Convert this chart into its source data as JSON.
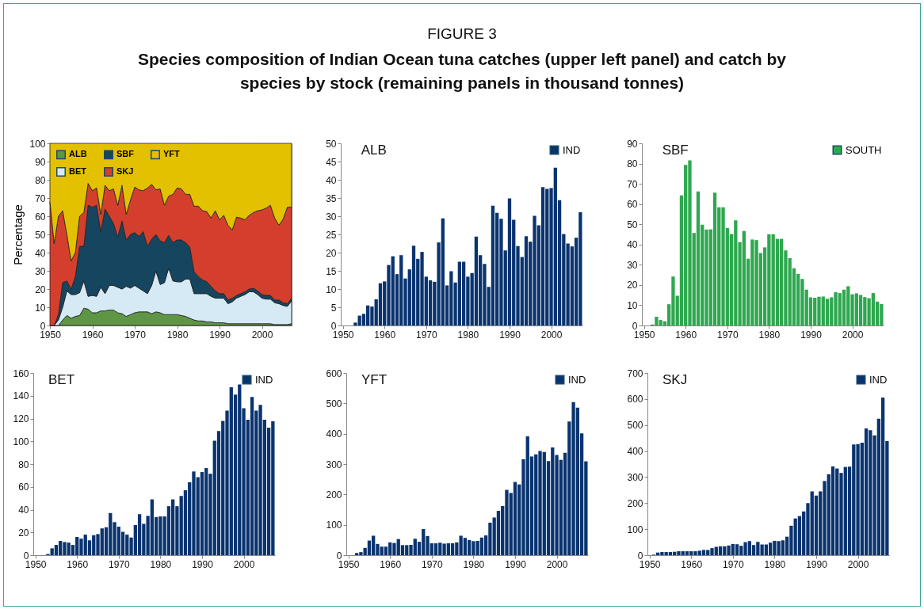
{
  "chart_data": [
    {
      "type": "area",
      "ylabel": "Percentage",
      "stacked": true,
      "legend": "top left",
      "x": [
        1950,
        1951,
        1952,
        1953,
        1954,
        1955,
        1956,
        1957,
        1958,
        1959,
        1960,
        1961,
        1962,
        1963,
        1964,
        1965,
        1966,
        1967,
        1968,
        1969,
        1970,
        1971,
        1972,
        1973,
        1974,
        1975,
        1976,
        1977,
        1978,
        1979,
        1980,
        1981,
        1982,
        1983,
        1984,
        1985,
        1986,
        1987,
        1988,
        1989,
        1990,
        1991,
        1992,
        1993,
        1994,
        1995,
        1996,
        1997,
        1998,
        1999,
        2000,
        2001,
        2002,
        2003,
        2004,
        2005,
        2006,
        2007
      ],
      "xlim": [
        1950,
        2007
      ],
      "xticks": [
        1950,
        1960,
        1970,
        1980,
        1990,
        2000
      ],
      "ylim": [
        0,
        100
      ],
      "yticks": [
        0,
        10,
        20,
        30,
        40,
        50,
        60,
        70,
        80,
        90,
        100
      ],
      "series": [
        {
          "name": "ALB",
          "color": "#5e9645",
          "values": [
            0,
            0,
            0,
            3,
            5.5,
            4,
            5,
            5.5,
            9.5,
            9,
            7,
            7,
            8,
            8,
            8.5,
            8.5,
            7,
            6.5,
            5,
            6,
            7,
            7.5,
            7.5,
            7.5,
            6.5,
            7.5,
            7,
            6,
            6,
            6,
            6,
            5.5,
            5,
            4,
            3,
            2.5,
            2.5,
            2,
            2,
            1.5,
            1.5,
            1.5,
            1,
            1,
            1,
            1,
            1,
            1,
            1,
            1,
            1,
            1,
            1,
            0.5,
            0.5,
            0.5,
            0.5,
            1
          ]
        },
        {
          "name": "BET",
          "color": "#d6eaf6",
          "values": [
            0,
            0,
            3,
            7,
            13.5,
            13,
            12,
            12.5,
            15,
            7,
            9.5,
            9,
            13,
            9.5,
            13.5,
            13.5,
            14,
            13.5,
            16.5,
            14.5,
            15,
            13,
            11.5,
            10,
            15.5,
            22.5,
            15.5,
            17.5,
            25.5,
            18.5,
            18,
            18.5,
            20.5,
            21.5,
            14.5,
            15,
            15,
            15.5,
            14,
            13.5,
            13.5,
            13.5,
            11,
            12,
            14,
            15,
            16,
            17.5,
            17.5,
            16,
            14,
            13.5,
            13.5,
            12,
            11.5,
            10.5,
            10,
            12.5
          ]
        },
        {
          "name": "SBF",
          "color": "#16455f",
          "values": [
            0,
            0,
            3,
            13.5,
            5.5,
            3,
            10,
            25.5,
            19,
            50,
            48.5,
            50,
            30.5,
            46.5,
            38,
            34,
            27.5,
            37.5,
            25.5,
            29.5,
            29,
            28.5,
            32.5,
            26,
            25.5,
            20,
            24,
            22,
            18,
            21,
            23,
            23,
            20,
            17.5,
            12,
            9.5,
            7.5,
            6.5,
            5.5,
            4,
            2.5,
            2.5,
            2,
            2,
            1.5,
            1.5,
            1.5,
            1.5,
            2,
            2,
            2,
            2,
            2,
            1.5,
            2,
            1.5,
            1.5,
            1.5
          ]
        },
        {
          "name": "SKJ",
          "color": "#d43f2d",
          "values": [
            68,
            45,
            54,
            39.5,
            25.5,
            15.5,
            13,
            16.5,
            18.5,
            12,
            9,
            9.5,
            9.5,
            13,
            14,
            19,
            17.5,
            19.5,
            14,
            19,
            25,
            25.5,
            22.5,
            32,
            30,
            24.5,
            28.5,
            20.5,
            21.5,
            26.5,
            28.5,
            28,
            26.5,
            29,
            36,
            38.5,
            38,
            38.5,
            37.5,
            44,
            40.5,
            43,
            41,
            37.5,
            43,
            41.5,
            39.5,
            40.5,
            41.5,
            44,
            46.5,
            48,
            49.5,
            45,
            41,
            46,
            53,
            50
          ]
        },
        {
          "name": "YFT",
          "color": "#e3c100",
          "values": [
            32,
            55,
            40,
            37,
            50,
            64.5,
            60,
            40,
            38,
            22,
            26,
            24.5,
            39,
            23,
            26,
            25,
            34,
            23,
            39,
            31,
            24,
            25.5,
            26,
            24.5,
            22.5,
            25.5,
            25,
            34,
            29,
            28,
            24.5,
            25,
            28,
            28,
            34.5,
            34.5,
            37,
            37.5,
            41,
            37,
            42,
            39.5,
            45,
            47.5,
            40.5,
            41,
            42,
            39.5,
            38,
            37,
            36.5,
            35.5,
            34,
            41,
            45,
            41.5,
            35,
            35
          ]
        }
      ]
    },
    {
      "type": "bar",
      "title": "ALB",
      "legend": "top right",
      "annotations": [
        "FIGURE 3",
        "Species composition of Indian Ocean tuna catches (upper left panel) and catch by species by stock (remaining panels in thousand tonnes)"
      ],
      "x": [
        1950,
        1951,
        1952,
        1953,
        1954,
        1955,
        1956,
        1957,
        1958,
        1959,
        1960,
        1961,
        1962,
        1963,
        1964,
        1965,
        1966,
        1967,
        1968,
        1969,
        1970,
        1971,
        1972,
        1973,
        1974,
        1975,
        1976,
        1977,
        1978,
        1979,
        1980,
        1981,
        1982,
        1983,
        1984,
        1985,
        1986,
        1987,
        1988,
        1989,
        1990,
        1991,
        1992,
        1993,
        1994,
        1995,
        1996,
        1997,
        1998,
        1999,
        2000,
        2001,
        2002,
        2003,
        2004,
        2005,
        2006,
        2007
      ],
      "xlim": [
        1949.5,
        2007.5
      ],
      "xticks": [
        1950,
        1960,
        1970,
        1980,
        1990,
        2000
      ],
      "ylim": [
        0,
        50
      ],
      "yticks": [
        0,
        5,
        10,
        15,
        20,
        25,
        30,
        35,
        40,
        45,
        50
      ],
      "series": [
        {
          "name": "IND",
          "color": "#0a3470",
          "values": [
            0,
            0,
            0,
            0.8,
            2.7,
            3.2,
            5.5,
            5.2,
            7.2,
            11.6,
            12.1,
            16.6,
            19,
            14.1,
            19.3,
            12.9,
            15.4,
            21.9,
            18.3,
            20.2,
            13.4,
            12.4,
            12,
            22.8,
            29.4,
            11,
            14.9,
            11.8,
            17.5,
            17.5,
            13.4,
            14.4,
            24.4,
            19.3,
            16.9,
            10.6,
            32.9,
            30.9,
            29.3,
            20.6,
            34.9,
            29,
            21.8,
            18.8,
            24.5,
            23,
            30.1,
            27.5,
            38,
            37.5,
            37.7,
            43.3,
            34.4,
            25.1,
            22.5,
            21.7,
            24.1,
            31.1
          ]
        }
      ]
    },
    {
      "type": "bar",
      "title": "SBF",
      "legend": "top right",
      "x": [
        1950,
        1951,
        1952,
        1953,
        1954,
        1955,
        1956,
        1957,
        1958,
        1959,
        1960,
        1961,
        1962,
        1963,
        1964,
        1965,
        1966,
        1967,
        1968,
        1969,
        1970,
        1971,
        1972,
        1973,
        1974,
        1975,
        1976,
        1977,
        1978,
        1979,
        1980,
        1981,
        1982,
        1983,
        1984,
        1985,
        1986,
        1987,
        1988,
        1989,
        1990,
        1991,
        1992,
        1993,
        1994,
        1995,
        1996,
        1997,
        1998,
        1999,
        2000,
        2001,
        2002,
        2003,
        2004,
        2005,
        2006,
        2007
      ],
      "xlim": [
        1949.5,
        2007.5
      ],
      "xticks": [
        1950,
        1960,
        1970,
        1980,
        1990,
        2000
      ],
      "ylim": [
        0,
        90
      ],
      "yticks": [
        0,
        10,
        20,
        30,
        40,
        50,
        60,
        70,
        80,
        90
      ],
      "series": [
        {
          "name": "SOUTH",
          "color": "#2ea84f",
          "values": [
            0,
            0,
            0.5,
            4.3,
            2.7,
            2.1,
            10.5,
            24.2,
            14.7,
            64.3,
            79.3,
            81.6,
            45.7,
            66.2,
            49.8,
            47.4,
            47.5,
            65.6,
            58.4,
            58.4,
            48.2,
            45.2,
            51.9,
            41.2,
            46.7,
            33,
            42.5,
            42.2,
            35.8,
            38.6,
            45.1,
            45.1,
            42.8,
            42.8,
            37.1,
            33.3,
            28.3,
            25.5,
            23,
            17.7,
            13.9,
            13.7,
            14.2,
            14.3,
            13.2,
            13.9,
            16.5,
            16,
            17.7,
            19.4,
            15.4,
            15.9,
            15.1,
            14,
            13.5,
            16,
            11.8,
            10.6
          ]
        }
      ]
    },
    {
      "type": "bar",
      "title": "BET",
      "legend": "top right",
      "x": [
        1950,
        1951,
        1952,
        1953,
        1954,
        1955,
        1956,
        1957,
        1958,
        1959,
        1960,
        1961,
        1962,
        1963,
        1964,
        1965,
        1966,
        1967,
        1968,
        1969,
        1970,
        1971,
        1972,
        1973,
        1974,
        1975,
        1976,
        1977,
        1978,
        1979,
        1980,
        1981,
        1982,
        1983,
        1984,
        1985,
        1986,
        1987,
        1988,
        1989,
        1990,
        1991,
        1992,
        1993,
        1994,
        1995,
        1996,
        1997,
        1998,
        1999,
        2000,
        2001,
        2002,
        2003,
        2004,
        2005,
        2006,
        2007
      ],
      "xlim": [
        1949.5,
        2007.5
      ],
      "xticks": [
        1950,
        1960,
        1970,
        1980,
        1990,
        2000
      ],
      "ylim": [
        0,
        160
      ],
      "yticks": [
        0,
        20,
        40,
        60,
        80,
        100,
        120,
        140,
        160
      ],
      "series": [
        {
          "name": "IND",
          "color": "#0a3470",
          "values": [
            0,
            0,
            0,
            1,
            6,
            9,
            12.5,
            11.5,
            11,
            9,
            16,
            14.5,
            18,
            13,
            17.5,
            18.5,
            23.5,
            24.5,
            37,
            29,
            25,
            20.5,
            18,
            15.5,
            26.5,
            36,
            27.5,
            34.5,
            49,
            33.5,
            34,
            34,
            43,
            49,
            43,
            52,
            57,
            64,
            73.5,
            68.5,
            73,
            76.5,
            71.5,
            100.5,
            109,
            118,
            127,
            147.5,
            141,
            150,
            129,
            119,
            139,
            127,
            132,
            119,
            112,
            117.5
          ]
        }
      ]
    },
    {
      "type": "bar",
      "title": "YFT",
      "legend": "top right",
      "x": [
        1950,
        1951,
        1952,
        1953,
        1954,
        1955,
        1956,
        1957,
        1958,
        1959,
        1960,
        1961,
        1962,
        1963,
        1964,
        1965,
        1966,
        1967,
        1968,
        1969,
        1970,
        1971,
        1972,
        1973,
        1974,
        1975,
        1976,
        1977,
        1978,
        1979,
        1980,
        1981,
        1982,
        1983,
        1984,
        1985,
        1986,
        1987,
        1988,
        1989,
        1990,
        1991,
        1992,
        1993,
        1994,
        1995,
        1996,
        1997,
        1998,
        1999,
        2000,
        2001,
        2002,
        2003,
        2004,
        2005,
        2006,
        2007
      ],
      "xlim": [
        1949.5,
        2007.5
      ],
      "xticks": [
        1950,
        1960,
        1970,
        1980,
        1990,
        2000
      ],
      "ylim": [
        0,
        600
      ],
      "yticks": [
        0,
        100,
        200,
        300,
        400,
        500,
        600
      ],
      "series": [
        {
          "name": "IND",
          "color": "#0a3470",
          "values": [
            0,
            0,
            7,
            10,
            24,
            48,
            64,
            37,
            28,
            28,
            42,
            40,
            53,
            33,
            33,
            34,
            54,
            44,
            86,
            63,
            39,
            39,
            41,
            38,
            39,
            39,
            42,
            64,
            57,
            50,
            46,
            47,
            58,
            65,
            107,
            124,
            146,
            162,
            215,
            205,
            241,
            233,
            316,
            391,
            325,
            332,
            343,
            340,
            310,
            355,
            330,
            314,
            337,
            440,
            504,
            486,
            401,
            309
          ]
        }
      ]
    },
    {
      "type": "bar",
      "title": "SKJ",
      "legend": "top right",
      "x": [
        1950,
        1951,
        1952,
        1953,
        1954,
        1955,
        1956,
        1957,
        1958,
        1959,
        1960,
        1961,
        1962,
        1963,
        1964,
        1965,
        1966,
        1967,
        1968,
        1969,
        1970,
        1971,
        1972,
        1973,
        1974,
        1975,
        1976,
        1977,
        1978,
        1979,
        1980,
        1981,
        1982,
        1983,
        1984,
        1985,
        1986,
        1987,
        1988,
        1989,
        1990,
        1991,
        1992,
        1993,
        1994,
        1995,
        1996,
        1997,
        1998,
        1999,
        2000,
        2001,
        2002,
        2003,
        2004,
        2005,
        2006,
        2007
      ],
      "xlim": [
        1949.5,
        2007.5
      ],
      "xticks": [
        1950,
        1960,
        1970,
        1980,
        1990,
        2000
      ],
      "ylim": [
        0,
        700
      ],
      "yticks": [
        0,
        100,
        200,
        300,
        400,
        500,
        600,
        700
      ],
      "series": [
        {
          "name": "IND",
          "color": "#0a3470",
          "values": [
            0,
            2,
            10,
            12,
            12,
            12,
            13,
            15,
            15,
            15,
            15,
            15,
            17,
            20,
            20,
            27,
            32,
            34,
            34,
            37,
            43,
            42,
            36,
            50,
            54,
            39,
            51,
            41,
            41,
            48,
            55,
            54,
            57,
            71,
            113,
            141,
            150,
            168,
            200,
            245,
            229,
            245,
            285,
            311,
            341,
            333,
            316,
            339,
            340,
            425,
            427,
            432,
            487,
            480,
            460,
            524,
            606,
            438
          ]
        }
      ]
    }
  ]
}
